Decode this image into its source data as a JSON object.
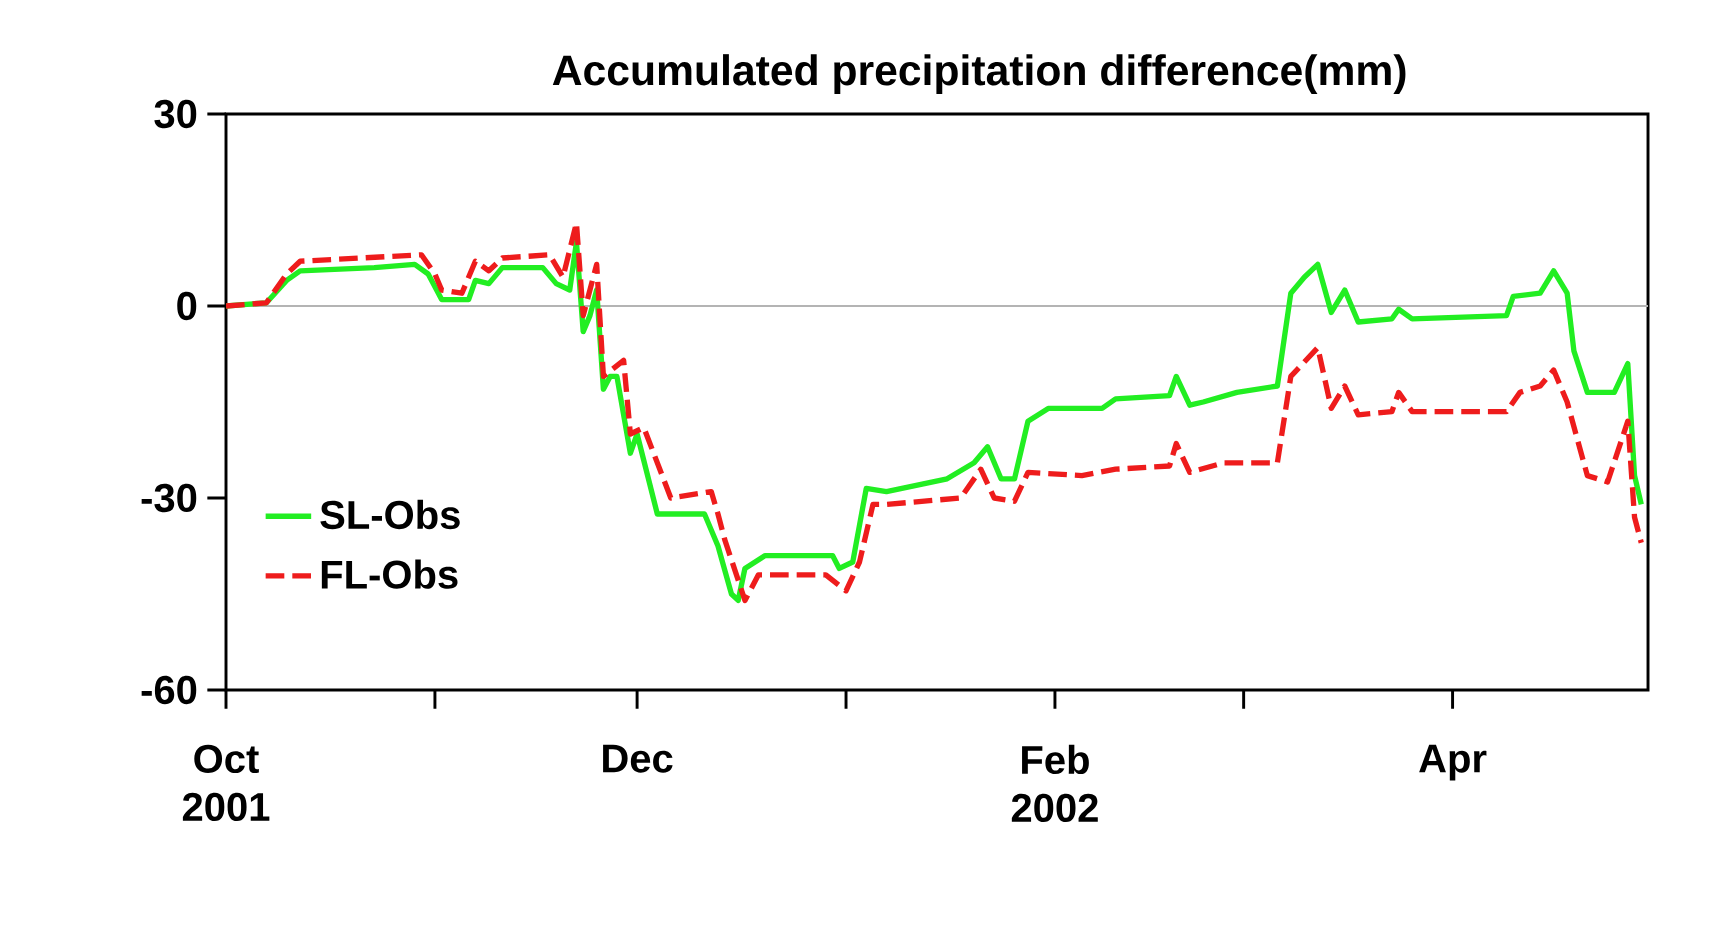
{
  "chart_data": {
    "type": "line",
    "title": "Accumulated precipitation difference(mm)",
    "x": [
      "2001-10-01",
      "2001-10-07",
      "2001-10-10",
      "2001-10-12",
      "2001-10-23",
      "2001-10-29",
      "2001-10-31",
      "2001-11-02",
      "2001-11-06",
      "2001-11-07",
      "2001-11-09",
      "2001-11-11",
      "2001-11-17",
      "2001-11-19",
      "2001-11-21",
      "2001-11-22",
      "2001-11-23",
      "2001-11-24",
      "2001-11-25",
      "2001-11-26",
      "2001-11-27",
      "2001-11-28",
      "2001-11-30",
      "2001-12-01",
      "2001-12-04",
      "2001-12-11",
      "2001-12-13",
      "2001-12-15",
      "2001-12-16",
      "2001-12-17",
      "2001-12-20",
      "2001-12-30",
      "2001-12-31",
      "2002-01-02",
      "2002-01-04",
      "2002-01-07",
      "2002-01-16",
      "2002-01-20",
      "2002-01-22",
      "2002-01-24",
      "2002-01-26",
      "2002-01-28",
      "2002-01-31",
      "2002-02-08",
      "2002-02-10",
      "2002-02-18",
      "2002-02-19",
      "2002-02-21",
      "2002-02-23",
      "2002-02-28",
      "2002-03-06",
      "2002-03-08",
      "2002-03-10",
      "2002-03-12",
      "2002-03-14",
      "2002-03-16",
      "2002-03-18",
      "2002-03-23",
      "2002-03-24",
      "2002-03-26",
      "2002-04-09",
      "2002-04-10",
      "2002-04-14",
      "2002-04-16",
      "2002-04-18",
      "2002-04-19",
      "2002-04-21",
      "2002-04-25",
      "2002-04-27",
      "2002-04-28",
      "2002-04-29"
    ],
    "series": [
      {
        "name": "SL-Obs",
        "color": "#22ee22",
        "line_style": "solid",
        "values": [
          0,
          0.5,
          4,
          5.5,
          6,
          6.5,
          5,
          1,
          1,
          4,
          3.5,
          6,
          6,
          3.5,
          2.5,
          10,
          -4,
          -1.5,
          2.5,
          -13,
          -11,
          -11,
          -23,
          -20,
          -32.5,
          -32.5,
          -37.5,
          -45,
          -46,
          -41,
          -39,
          -39,
          -41,
          -40,
          -28.5,
          -29,
          -27,
          -24.5,
          -22,
          -27,
          -27,
          -18,
          -16,
          -16,
          -14.5,
          -14,
          -11,
          -15.5,
          -15,
          -13.5,
          -12.5,
          2,
          4.5,
          6.5,
          -1,
          2.5,
          -2.5,
          -2,
          -0.5,
          -2,
          -1.5,
          1.5,
          2,
          5.5,
          2,
          -7,
          -13.5,
          -13.5,
          -9,
          -26.5,
          -31
        ]
      },
      {
        "name": "FL-Obs",
        "color": "#ee1c1c",
        "line_style": "dashed",
        "x": [
          "2001-10-01",
          "2001-10-07",
          "2001-10-10",
          "2001-10-12",
          "2001-10-30",
          "2001-11-01",
          "2001-11-02",
          "2001-11-05",
          "2001-11-07",
          "2001-11-09",
          "2001-11-11",
          "2001-11-18",
          "2001-11-20",
          "2001-11-22",
          "2001-11-23",
          "2001-11-25",
          "2001-11-26",
          "2001-11-29",
          "2001-11-30",
          "2001-12-02",
          "2001-12-06",
          "2001-12-12",
          "2001-12-13",
          "2001-12-14",
          "2001-12-17",
          "2001-12-19",
          "2001-12-29",
          "2002-01-01",
          "2002-01-03",
          "2002-01-05",
          "2002-01-07",
          "2002-01-18",
          "2002-01-21",
          "2002-01-23",
          "2002-01-26",
          "2002-01-28",
          "2002-02-05",
          "2002-02-10",
          "2002-02-18",
          "2002-02-19",
          "2002-02-21",
          "2002-02-26",
          "2002-03-06",
          "2002-03-08",
          "2002-03-12",
          "2002-03-14",
          "2002-03-16",
          "2002-03-18",
          "2002-03-23",
          "2002-03-24",
          "2002-03-26",
          "2002-04-09",
          "2002-04-11",
          "2002-04-14",
          "2002-04-16",
          "2002-04-18",
          "2002-04-21",
          "2002-04-24",
          "2002-04-27",
          "2002-04-28",
          "2002-04-29"
        ],
        "values": [
          0,
          0.5,
          5,
          7,
          8,
          5,
          2.5,
          2,
          7,
          5.5,
          7.5,
          8,
          4.5,
          13,
          -1.5,
          6.5,
          -11,
          -8.5,
          -20,
          -19,
          -30,
          -29,
          -32.5,
          -36.5,
          -46,
          -42,
          -42,
          -44.5,
          -40,
          -31,
          -31,
          -30,
          -25.5,
          -30,
          -30.5,
          -26,
          -26.5,
          -25.5,
          -25,
          -21.5,
          -26,
          -24.5,
          -24.5,
          -11,
          -6.5,
          -16,
          -12.5,
          -17,
          -16.5,
          -13.5,
          -16.5,
          -16.5,
          -13.5,
          -12.5,
          -10,
          -15,
          -26.5,
          -27.5,
          -18,
          -33,
          -37
        ]
      }
    ],
    "xlim": [
      "2001-10-01",
      "2002-04-30"
    ],
    "xticks": [
      {
        "value": "2001-10-01",
        "label": "Oct 2001"
      },
      {
        "value": "2001-11-01",
        "label": null
      },
      {
        "value": "2001-12-01",
        "label": "Dec"
      },
      {
        "value": "2002-01-01",
        "label": null
      },
      {
        "value": "2002-02-01",
        "label": "Feb 2002"
      },
      {
        "value": "2002-03-01",
        "label": null
      },
      {
        "value": "2002-04-01",
        "label": "Apr"
      }
    ],
    "ylim": [
      -60,
      30
    ],
    "yticks": [
      30,
      0,
      -30,
      -60
    ],
    "ref_lines": [
      {
        "axis": "y",
        "value": 0,
        "color": "#b4b4b4"
      }
    ],
    "legend": "bottom left"
  }
}
